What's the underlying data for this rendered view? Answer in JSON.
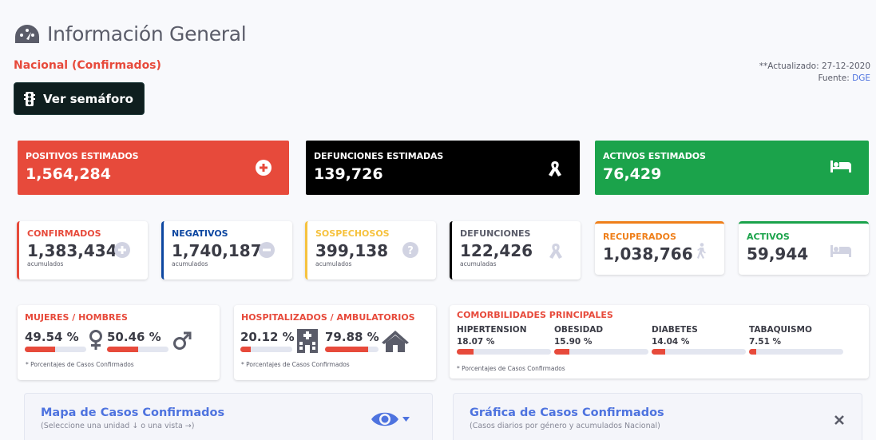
{
  "header": {
    "title": "Información General",
    "subtitle": "Nacional (Confirmados)",
    "updated": "**Actualizado: 27-12-2020",
    "source_label": "Fuente:",
    "source_link": "DGE",
    "semaforo_button": "Ver semáforo"
  },
  "estimated": [
    {
      "label": "POSITIVOS ESTIMADOS",
      "value": "1,564,284",
      "color": "#e74a3b",
      "icon": "plus-circle-icon"
    },
    {
      "label": "DEFUNCIONES ESTIMADAS",
      "value": "139,726",
      "color": "#000000",
      "icon": "ribbon-icon"
    },
    {
      "label": "ACTIVOS ESTIMADOS",
      "value": "76,429",
      "color": "#1ba34b",
      "icon": "bed-icon"
    }
  ],
  "counts": [
    {
      "label": "CONFIRMADOS",
      "value": "1,383,434",
      "sub": "acumulados",
      "color": "#e74a3b"
    },
    {
      "label": "NEGATIVOS",
      "value": "1,740,187",
      "sub": "acumulados",
      "color": "#0d47a1"
    },
    {
      "label": "SOSPECHOSOS",
      "value": "399,138",
      "sub": "acumulados",
      "color": "#f6c23e"
    },
    {
      "label": "DEFUNCIONES",
      "value": "122,426",
      "sub": "acumuladas",
      "color": "#000000"
    },
    {
      "label": "RECUPERADOS",
      "value": "1,038,766",
      "color": "#ef7f1a"
    },
    {
      "label": "ACTIVOS",
      "value": "59,944",
      "color": "#1ba34b"
    }
  ],
  "gender": {
    "title": "MUJERES / HOMBRES",
    "women_pct": "49.54 %",
    "men_pct": "50.46 %",
    "women_value": 49.54,
    "men_value": 50.46,
    "note": "* Porcentajes de Casos Confirmados"
  },
  "hospital": {
    "title": "HOSPITALIZADOS / AMBULATORIOS",
    "hosp_pct": "20.12 %",
    "amb_pct": "79.88 %",
    "hosp_value": 20.12,
    "amb_value": 79.88,
    "note": "* Porcentajes de Casos Confirmados"
  },
  "comorbidities": {
    "title": "COMORBILIDADES PRINCIPALES",
    "items": [
      {
        "label": "HIPERTENSION",
        "pct": "18.07 %",
        "value": 18.07
      },
      {
        "label": "OBESIDAD",
        "pct": "15.90 %",
        "value": 15.9
      },
      {
        "label": "DIABETES",
        "pct": "14.04 %",
        "value": 14.04
      },
      {
        "label": "TABAQUISMO",
        "pct": "7.51 %",
        "value": 7.51
      }
    ],
    "note": "* Porcentajes de Casos Confirmados"
  },
  "map_panel": {
    "title": "Mapa de Casos Confirmados",
    "subtitle": "(Seleccione una unidad ↓ o una vista →)"
  },
  "chart_panel": {
    "title": "Gráfica de Casos Confirmados",
    "subtitle": "(Casos diarios por género y acumulados Nacional)"
  }
}
